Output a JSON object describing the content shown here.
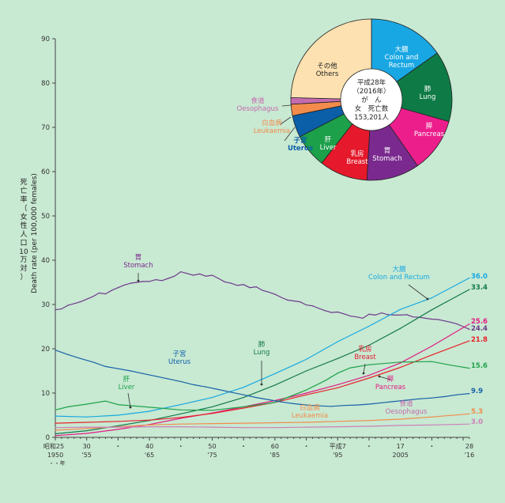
{
  "background_color": "#c8e9d2",
  "y_axis_label": {
    "jp_chars": [
      "死",
      "亡",
      "率",
      "（",
      "女",
      "性",
      "人",
      "口",
      "10",
      "万",
      "対",
      "）"
    ],
    "en": "Death rate (per 100,000 females)"
  },
  "x_axis": {
    "era_top": "昭和25",
    "heisei_top": "平成7",
    "year_top": "年",
    "bottom_labels": [
      "1950",
      "'55",
      "'65",
      "'75",
      "'85",
      "'95",
      "2005",
      "'16"
    ],
    "top_labels": [
      "30",
      "40",
      "50",
      "60",
      "17",
      "28"
    ],
    "dot": "・"
  },
  "pie": {
    "center_lines": [
      "平成28年",
      "（2016年）",
      "が　ん",
      "女　死亡数",
      "153,201人"
    ],
    "slices": [
      {
        "jp": "大腸",
        "en": "Colon and\nRectum",
        "value": 15.2,
        "color": "#19a7e4"
      },
      {
        "jp": "肺",
        "en": "Lung",
        "value": 14.2,
        "color": "#0e7a45"
      },
      {
        "jp": "膵",
        "en": "Pancreas",
        "value": 10.9,
        "color": "#ec1e8c"
      },
      {
        "jp": "胃",
        "en": "Stomach",
        "value": 10.6,
        "color": "#7a2a8e"
      },
      {
        "jp": "乳房",
        "en": "Breast",
        "value": 9.7,
        "color": "#e5192b"
      },
      {
        "jp": "肝",
        "en": "Liver",
        "value": 6.8,
        "color": "#1da04a"
      },
      {
        "jp": "子宮",
        "en": "Uterus",
        "value": 4.4,
        "color": "#0b5ea8"
      },
      {
        "jp": "白血病",
        "en": "Leukaemia",
        "value": 2.3,
        "color": "#f28b4c"
      },
      {
        "jp": "食道",
        "en": "Oesophagus",
        "value": 1.3,
        "color": "#c66bb0"
      },
      {
        "jp": "その他",
        "en": "Others",
        "value": 24.6,
        "color": "#fde1b0"
      }
    ]
  },
  "chart_data": {
    "type": "line",
    "ylim": [
      0,
      90
    ],
    "yticks": [
      0,
      10,
      20,
      30,
      40,
      50,
      60,
      70,
      80,
      90
    ],
    "xlim": [
      1950,
      2016
    ],
    "series": [
      {
        "name": "胃 Stomach",
        "color": "#6e3a8c",
        "end_label": "24.4",
        "x": [
          1950,
          1951,
          1952,
          1953,
          1954,
          1955,
          1956,
          1957,
          1958,
          1959,
          1960,
          1961,
          1962,
          1963,
          1964,
          1965,
          1966,
          1967,
          1968,
          1969,
          1970,
          1971,
          1972,
          1973,
          1974,
          1975,
          1976,
          1977,
          1978,
          1979,
          1980,
          1981,
          1982,
          1983,
          1984,
          1985,
          1986,
          1987,
          1988,
          1989,
          1990,
          1991,
          1992,
          1993,
          1994,
          1995,
          1996,
          1997,
          1998,
          1999,
          2000,
          2001,
          2002,
          2003,
          2004,
          2005,
          2006,
          2007,
          2008,
          2009,
          2010,
          2011,
          2012,
          2013,
          2014,
          2015,
          2016
        ],
        "y": [
          28.8,
          29.0,
          29.8,
          30.2,
          30.6,
          31.2,
          31.8,
          32.6,
          32.4,
          33.2,
          33.8,
          34.4,
          34.8,
          35.0,
          35.2,
          35.2,
          35.6,
          35.4,
          35.9,
          36.4,
          37.4,
          37.0,
          36.6,
          36.9,
          36.4,
          36.6,
          35.9,
          35.1,
          34.8,
          34.3,
          34.5,
          33.8,
          34.0,
          33.2,
          32.8,
          32.3,
          31.6,
          31.0,
          30.8,
          30.6,
          29.9,
          29.7,
          29.1,
          28.6,
          28.2,
          28.3,
          27.9,
          27.4,
          27.2,
          26.9,
          27.8,
          27.6,
          28.1,
          27.7,
          27.6,
          27.6,
          27.7,
          27.2,
          27.1,
          26.9,
          26.7,
          26.6,
          26.3,
          26.0,
          25.6,
          25.0,
          24.4
        ]
      },
      {
        "name": "大腸 Colon and Rectum",
        "color": "#19a9e1",
        "end_label": "36.0",
        "x": [
          1950,
          1955,
          1960,
          1965,
          1970,
          1975,
          1980,
          1985,
          1990,
          1995,
          2000,
          2005,
          2010,
          2016
        ],
        "y": [
          4.8,
          4.6,
          5.0,
          5.9,
          7.4,
          9.0,
          11.3,
          14.4,
          17.6,
          21.6,
          25.1,
          28.9,
          31.5,
          36.0
        ]
      },
      {
        "name": "肺 Lung",
        "color": "#137a4b",
        "end_label": "33.4",
        "x": [
          1950,
          1955,
          1960,
          1965,
          1970,
          1975,
          1980,
          1985,
          1990,
          1995,
          2000,
          2005,
          2010,
          2016
        ],
        "y": [
          0.8,
          1.5,
          2.6,
          3.8,
          5.3,
          6.9,
          9.0,
          11.8,
          15.0,
          17.8,
          20.8,
          24.6,
          28.8,
          33.4
        ]
      },
      {
        "name": "膵 Pancreas",
        "color": "#e21b83",
        "end_label": "25.6",
        "x": [
          1950,
          1955,
          1960,
          1965,
          1970,
          1975,
          1980,
          1985,
          1990,
          1995,
          2000,
          2005,
          2010,
          2016
        ],
        "y": [
          0.4,
          0.9,
          1.8,
          2.9,
          4.3,
          5.5,
          6.9,
          8.3,
          10.0,
          11.9,
          14.0,
          16.8,
          20.6,
          25.6
        ]
      },
      {
        "name": "乳房 Breast",
        "color": "#e8222b",
        "end_label": "21.8",
        "x": [
          1950,
          1955,
          1960,
          1965,
          1970,
          1975,
          1980,
          1985,
          1990,
          1995,
          2000,
          2005,
          2010,
          2016
        ],
        "y": [
          3.2,
          3.4,
          3.6,
          3.9,
          4.5,
          5.4,
          6.6,
          7.9,
          9.6,
          11.2,
          13.4,
          15.8,
          18.6,
          21.8
        ]
      },
      {
        "name": "肝 Liver",
        "color": "#1ea34a",
        "end_label": "15.6",
        "x": [
          1950,
          1952,
          1955,
          1958,
          1960,
          1965,
          1970,
          1975,
          1980,
          1985,
          1990,
          1993,
          1995,
          1997,
          2000,
          2005,
          2010,
          2013,
          2016
        ],
        "y": [
          6.2,
          6.9,
          7.5,
          8.2,
          7.4,
          6.8,
          6.2,
          6.1,
          6.9,
          7.9,
          10.7,
          12.8,
          14.5,
          15.7,
          16.4,
          17.0,
          17.1,
          16.3,
          15.6
        ]
      },
      {
        "name": "子宮 Uterus",
        "color": "#1561a8",
        "end_label": "9.9",
        "x": [
          1950,
          1952,
          1954,
          1956,
          1958,
          1960,
          1962,
          1964,
          1966,
          1968,
          1970,
          1972,
          1974,
          1976,
          1978,
          1980,
          1982,
          1984,
          1986,
          1988,
          1990,
          1992,
          1994,
          1996,
          1998,
          2000,
          2002,
          2004,
          2006,
          2008,
          2010,
          2012,
          2014,
          2016
        ],
        "y": [
          19.7,
          18.7,
          17.8,
          17.0,
          16.0,
          15.5,
          15.0,
          14.4,
          13.8,
          13.2,
          12.6,
          11.9,
          11.4,
          10.8,
          10.2,
          9.6,
          9.0,
          8.5,
          8.0,
          7.6,
          7.3,
          7.1,
          7.0,
          7.2,
          7.3,
          7.5,
          7.8,
          8.1,
          8.4,
          8.7,
          8.9,
          9.2,
          9.6,
          9.9
        ]
      },
      {
        "name": "白血病 Leukaemia",
        "color": "#f28b4c",
        "end_label": "5.3",
        "x": [
          1950,
          1955,
          1960,
          1965,
          1970,
          1975,
          1980,
          1985,
          1990,
          1995,
          2000,
          2005,
          2010,
          2016
        ],
        "y": [
          1.6,
          2.0,
          2.4,
          2.8,
          3.0,
          3.1,
          3.2,
          3.3,
          3.4,
          3.6,
          3.8,
          4.1,
          4.6,
          5.3
        ]
      },
      {
        "name": "食道 Oesophagus",
        "color": "#cc80b8",
        "end_label": "3.0",
        "x": [
          1950,
          1955,
          1960,
          1965,
          1970,
          1975,
          1980,
          1985,
          1990,
          1995,
          2000,
          2005,
          2010,
          2016
        ],
        "y": [
          2.2,
          2.3,
          2.3,
          2.4,
          2.4,
          2.3,
          2.2,
          2.2,
          2.3,
          2.4,
          2.5,
          2.7,
          2.8,
          3.0
        ]
      }
    ],
    "line_labels": [
      {
        "jp": "胃",
        "en": "Stomach",
        "color": "#7a2a8e"
      },
      {
        "jp": "子宮",
        "en": "Uterus",
        "color": "#0b5ea8"
      },
      {
        "jp": "肝",
        "en": "Liver",
        "color": "#1da04a"
      },
      {
        "jp": "肺",
        "en": "Lung",
        "color": "#137a4b"
      },
      {
        "jp": "大腸",
        "en": "Colon and Rectum",
        "color": "#19a9e1"
      },
      {
        "jp": "乳房",
        "en": "Breast",
        "color": "#e5192b"
      },
      {
        "jp": "膵",
        "en": "Pancreas",
        "color": "#e21b83"
      },
      {
        "jp": "白血病",
        "en": "Leukaemia",
        "color": "#f28b4c"
      },
      {
        "jp": "食道",
        "en": "Oesophagus",
        "color": "#c66bb0"
      }
    ]
  }
}
